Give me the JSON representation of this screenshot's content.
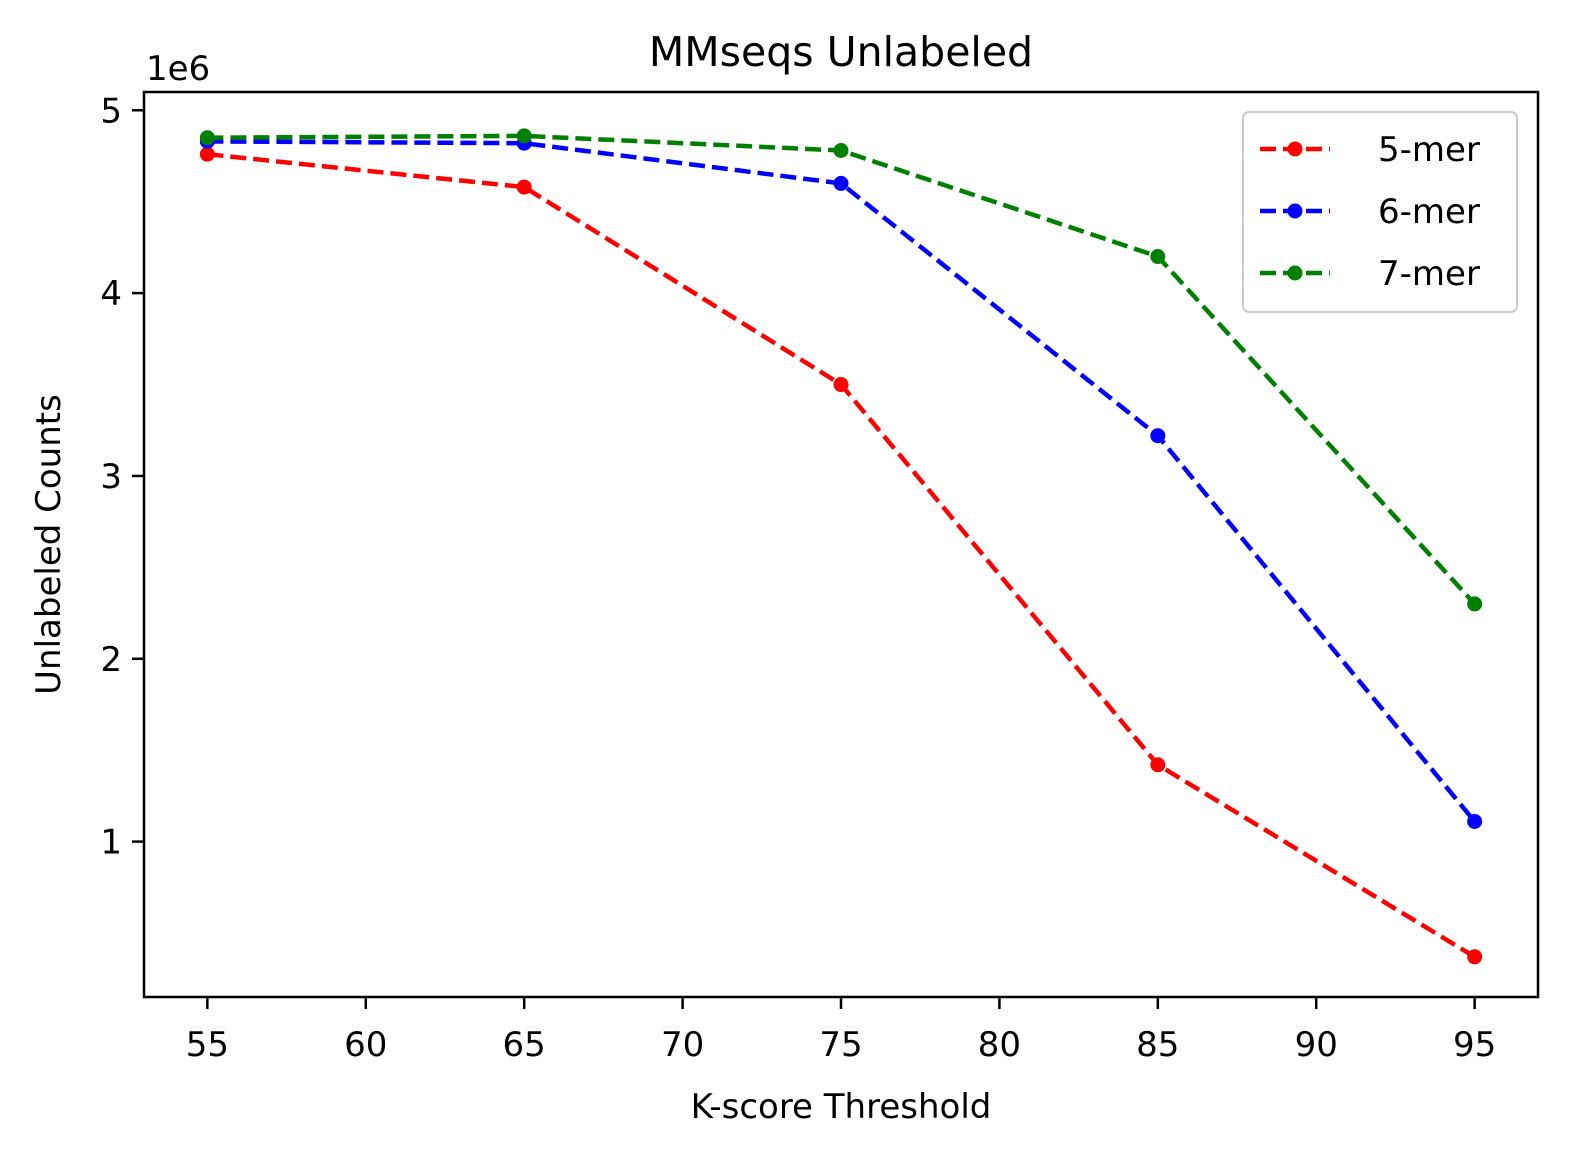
{
  "chart_data": {
    "type": "line",
    "title": "MMseqs Unlabeled",
    "xlabel": "K-score Threshold",
    "ylabel": "Unlabeled Counts",
    "y_offset_label": "1e6",
    "x": [
      55,
      65,
      75,
      85,
      95
    ],
    "xlim": [
      53,
      97
    ],
    "ylim": [
      0.15,
      5.1
    ],
    "x_ticks": [
      55,
      60,
      65,
      70,
      75,
      80,
      85,
      90,
      95
    ],
    "y_ticks": [
      1,
      2,
      3,
      4,
      5
    ],
    "y_scale_factor": 1000000,
    "grid": false,
    "legend_position": "top-right",
    "line_style": "dashed",
    "marker": "circle",
    "series": [
      {
        "name": "5-mer",
        "color": "#ff0000",
        "values": [
          4.76,
          4.58,
          3.5,
          1.42,
          0.37
        ]
      },
      {
        "name": "6-mer",
        "color": "#0000ff",
        "values": [
          4.83,
          4.82,
          4.6,
          3.22,
          1.11
        ]
      },
      {
        "name": "7-mer",
        "color": "#008000",
        "values": [
          4.85,
          4.86,
          4.78,
          4.2,
          2.3
        ]
      }
    ]
  }
}
